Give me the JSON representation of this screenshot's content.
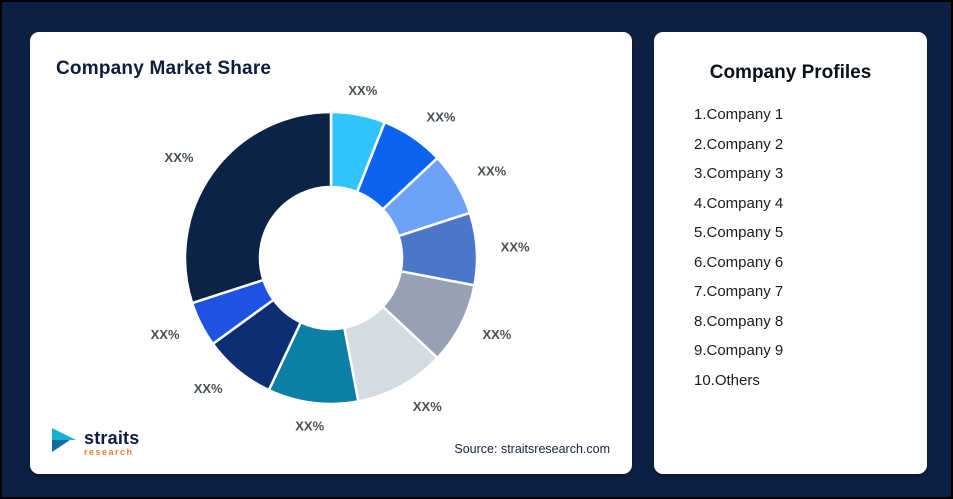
{
  "frame": {
    "background_color": "#0e1f45",
    "card_color": "#ffffff"
  },
  "chart_data": {
    "type": "pie",
    "donut": true,
    "title": "Company Market Share",
    "legend_position": "none",
    "value_unit": "percent",
    "segments": [
      {
        "label": "XX%",
        "value": 6,
        "color": "#2fc4fd"
      },
      {
        "label": "XX%",
        "value": 7,
        "color": "#0a64f0"
      },
      {
        "label": "XX%",
        "value": 7,
        "color": "#6da2f8"
      },
      {
        "label": "XX%",
        "value": 8,
        "color": "#4d76c9"
      },
      {
        "label": "XX%",
        "value": 9,
        "color": "#96a2b4"
      },
      {
        "label": "XX%",
        "value": 10,
        "color": "#d5dbe3"
      },
      {
        "label": "XX%",
        "value": 10,
        "color": "#0b7fa5"
      },
      {
        "label": "XX%",
        "value": 8,
        "color": "#0c2e73"
      },
      {
        "label": "XX%",
        "value": 5,
        "color": "#1d53e0"
      },
      {
        "label": "XX%",
        "value": 30,
        "color": "#0b2346"
      }
    ]
  },
  "source": {
    "text": "Source: straitsresearch.com"
  },
  "logo": {
    "brand": "straits",
    "sub_brand": "research"
  },
  "profiles": {
    "title": "Company Profiles",
    "items": [
      "1.Company 1",
      "2.Company 2",
      "3.Company 3",
      "4.Company 4",
      "5.Company 5",
      "6.Company 6",
      "7.Company 7",
      "8.Company 8",
      "9.Company 9",
      "10.Others"
    ]
  }
}
